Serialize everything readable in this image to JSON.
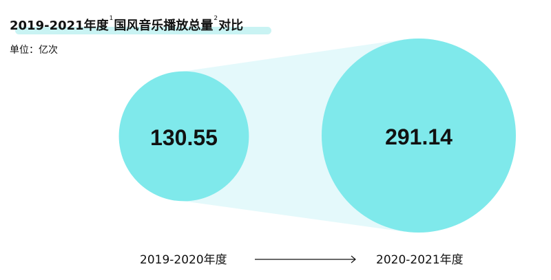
{
  "title": {
    "part1": "2019-2021年度",
    "sup1": "1",
    "part2": "国风音乐播放总量",
    "sup2": "2",
    "part3": "对比"
  },
  "unit_label": "单位：亿次",
  "colors": {
    "circle": "#7fe9eb",
    "connector": "#e4f9fb",
    "highlight": "#c9f3f3",
    "text": "#111111"
  },
  "chart_data": {
    "type": "bubble",
    "unit": "亿次",
    "categories": [
      "2019-2020年度",
      "2020-2021年度"
    ],
    "values": [
      130.55,
      291.14
    ],
    "value_labels": [
      "130.55",
      "291.14"
    ]
  }
}
